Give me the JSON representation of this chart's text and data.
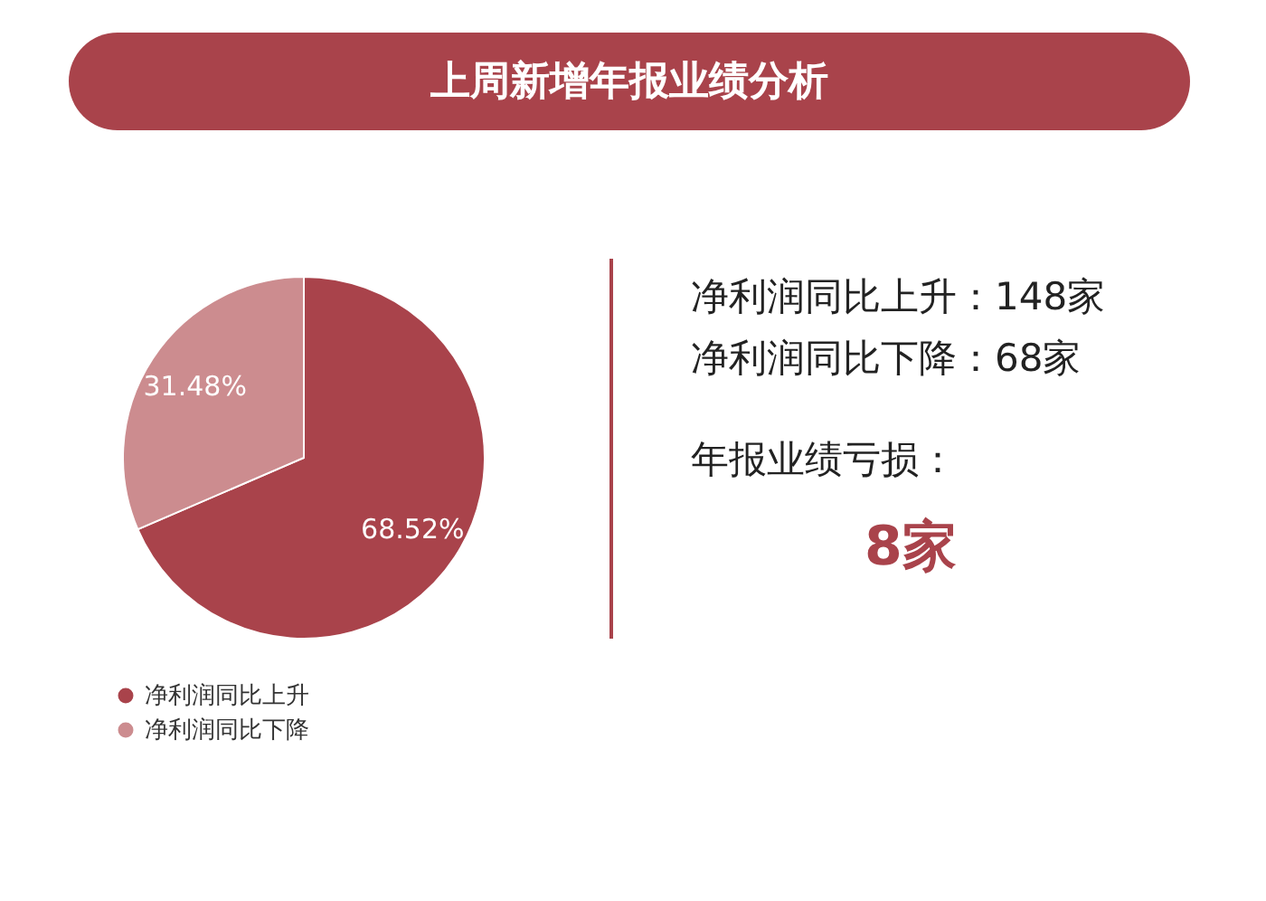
{
  "chart_data": {
    "type": "pie",
    "title": "上周新增年报业绩分析",
    "categories": [
      "净利润同比上升",
      "净利润同比下降"
    ],
    "values": [
      68.52,
      31.48
    ],
    "colors": [
      "#a9434b",
      "#cc8c8f"
    ],
    "value_labels": [
      "68.52%",
      "31.48%"
    ],
    "legend": "bottom",
    "annotations": [
      "净利润同比上升：148家",
      "净利润同比下降：68家",
      "年报业绩亏损：",
      "8家"
    ]
  }
}
